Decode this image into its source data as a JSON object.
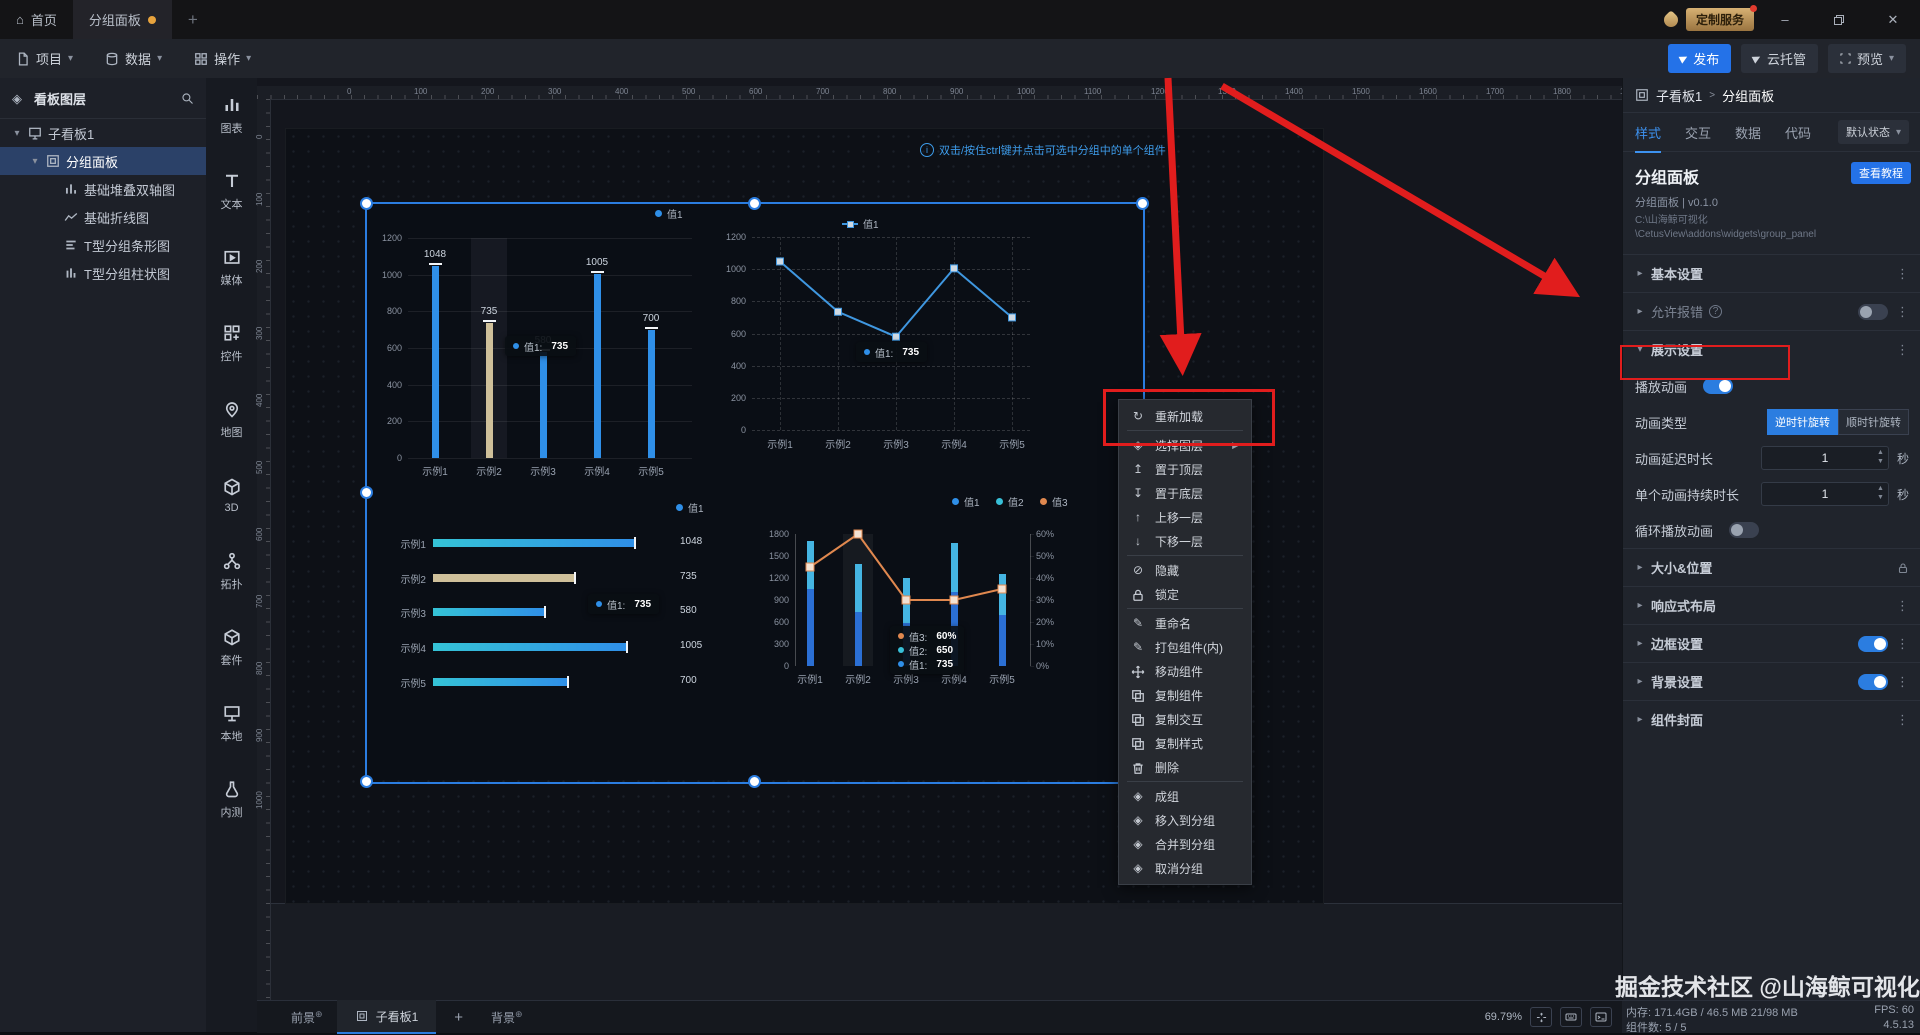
{
  "window": {
    "home_tab": "首页",
    "doc_tab": "分组面板",
    "new_tab": "+",
    "service_badge": "定制服务",
    "minimize": "–",
    "close": "✕"
  },
  "menubar": {
    "items": [
      {
        "label": "项目",
        "icon": "doc"
      },
      {
        "label": "数据",
        "icon": "db"
      },
      {
        "label": "操作",
        "icon": "grid"
      }
    ],
    "publish": "发布",
    "cloud": "云托管",
    "preview": "预览"
  },
  "layers_panel": {
    "title": "看板图层",
    "tree": [
      {
        "label": "子看板1",
        "indent": 0,
        "icon": "monitor",
        "expander": true,
        "selected": false
      },
      {
        "label": "分组面板",
        "indent": 1,
        "icon": "panel",
        "expander": true,
        "selected": true
      },
      {
        "label": "基础堆叠双轴图",
        "indent": 2,
        "icon": "bars-mini",
        "selected": false
      },
      {
        "label": "基础折线图",
        "indent": 2,
        "icon": "line-mini",
        "selected": false
      },
      {
        "label": "T型分组条形图",
        "indent": 2,
        "icon": "hbars-mini",
        "selected": false
      },
      {
        "label": "T型分组柱状图",
        "indent": 2,
        "icon": "vbars-mini",
        "selected": false
      }
    ]
  },
  "widget_toolbar": [
    {
      "label": "图表",
      "icon": "chart"
    },
    {
      "label": "文本",
      "icon": "text"
    },
    {
      "label": "媒体",
      "icon": "media"
    },
    {
      "label": "控件",
      "icon": "widget"
    },
    {
      "label": "地图",
      "icon": "map"
    },
    {
      "label": "3D",
      "icon": "cube"
    },
    {
      "label": "拓扑",
      "icon": "topo"
    },
    {
      "label": "套件",
      "icon": "kit"
    },
    {
      "label": "本地",
      "icon": "local"
    },
    {
      "label": "内测",
      "icon": "beta"
    }
  ],
  "canvas": {
    "hint": "双击/按住ctrl键并点击可选中分组中的单个组件",
    "h_ruler": [
      0,
      100,
      200,
      300,
      400,
      500,
      600,
      700,
      800,
      900,
      1000,
      1100,
      1200,
      1300,
      1400,
      1500,
      1600,
      1700,
      1800,
      1900
    ],
    "v_ruler": [
      0,
      100,
      200,
      300,
      400,
      500,
      600,
      700,
      800,
      900,
      1000
    ]
  },
  "chart_data": [
    {
      "name": "T型分组柱状图",
      "type": "bar",
      "categories": [
        "示例1",
        "示例2",
        "示例3",
        "示例4",
        "示例5"
      ],
      "values": [
        1048,
        735,
        580,
        1005,
        700
      ],
      "ylim": [
        0,
        1200
      ],
      "yticks": [
        1200,
        1000,
        800,
        600,
        400,
        200,
        0
      ],
      "legend": [
        "值1"
      ],
      "highlight_index": 1,
      "tooltip": [
        {
          "series": "值1",
          "value": "735"
        }
      ]
    },
    {
      "name": "基础折线图",
      "type": "line",
      "categories": [
        "示例1",
        "示例2",
        "示例3",
        "示例4",
        "示例5"
      ],
      "values": [
        1048,
        735,
        580,
        1005,
        700
      ],
      "ylim": [
        0,
        1200
      ],
      "yticks": [
        1200,
        1000,
        800,
        600,
        400,
        200,
        0
      ],
      "legend": [
        "值1"
      ],
      "tooltip": [
        {
          "series": "值1",
          "value": "735"
        }
      ]
    },
    {
      "name": "T型分组条形图",
      "type": "hbar",
      "categories": [
        "示例1",
        "示例2",
        "示例3",
        "示例4",
        "示例5"
      ],
      "values": [
        1048,
        735,
        580,
        1005,
        700
      ],
      "xlim": [
        0,
        1048
      ],
      "legend": [
        "值1"
      ],
      "highlight_index": 1,
      "tooltip": [
        {
          "series": "值1",
          "value": "735"
        }
      ]
    },
    {
      "name": "基础堆叠双轴图",
      "type": "combo",
      "categories": [
        "示例1",
        "示例2",
        "示例3",
        "示例4",
        "示例5"
      ],
      "series": [
        {
          "name": "值1",
          "type": "bar",
          "values": [
            1048,
            735,
            580,
            1005,
            700
          ]
        },
        {
          "name": "值2",
          "type": "bar",
          "values": [
            650,
            650,
            620,
            675,
            550
          ]
        },
        {
          "name": "值3",
          "type": "line",
          "values_pct": [
            45,
            60,
            30,
            30,
            35
          ]
        }
      ],
      "ylim_left": [
        0,
        1800
      ],
      "yticks_left": [
        1800,
        1500,
        1200,
        900,
        600,
        300,
        0
      ],
      "yticks_right": [
        "60%",
        "50%",
        "40%",
        "30%",
        "20%",
        "10%",
        "0%"
      ],
      "ylim_right_pct": [
        0,
        60
      ],
      "legend": [
        "值1",
        "值2",
        "值3"
      ],
      "tooltip": [
        {
          "series": "值3",
          "value": "60%"
        },
        {
          "series": "值2",
          "value": "650"
        },
        {
          "series": "值1",
          "value": "735"
        }
      ]
    }
  ],
  "context_menu": {
    "groups": [
      [
        {
          "label": "重新加载",
          "icon": "refresh"
        }
      ],
      [
        {
          "label": "选择图层",
          "icon": "layers",
          "submenu": true
        },
        {
          "label": "置于顶层",
          "icon": "to-top"
        },
        {
          "label": "置于底层",
          "icon": "to-bottom"
        },
        {
          "label": "上移一层",
          "icon": "up"
        },
        {
          "label": "下移一层",
          "icon": "down"
        }
      ],
      [
        {
          "label": "隐藏",
          "icon": "hide"
        },
        {
          "label": "锁定",
          "icon": "lock"
        }
      ],
      [
        {
          "label": "重命名",
          "icon": "rename"
        },
        {
          "label": "打包组件(内)",
          "icon": "rename"
        },
        {
          "label": "移动组件",
          "icon": "move"
        },
        {
          "label": "复制组件",
          "icon": "copy"
        },
        {
          "label": "复制交互",
          "icon": "copy"
        },
        {
          "label": "复制样式",
          "icon": "copy"
        },
        {
          "label": "删除",
          "icon": "trash"
        }
      ],
      [
        {
          "label": "成组",
          "icon": "layers"
        },
        {
          "label": "移入到分组",
          "icon": "layers"
        },
        {
          "label": "合并到分组",
          "icon": "layers"
        },
        {
          "label": "取消分组",
          "icon": "layers"
        }
      ]
    ]
  },
  "inspector": {
    "breadcrumb": {
      "root": "子看板1",
      "sep": ">",
      "current": "分组面板"
    },
    "tabs": [
      "样式",
      "交互",
      "数据",
      "代码"
    ],
    "active_tab": "样式",
    "state_selector": "默认状态",
    "widget_title": "分组面板",
    "tutorial_button": "查看教程",
    "subtitle": "分组面板 | v0.1.0",
    "path_line1": "C:\\山海鲸可视化",
    "path_line2": "\\CetusView\\addons\\widgets\\group_panel",
    "rows": [
      {
        "type": "header",
        "label": "基本设置",
        "expanded": false,
        "trailing": [
          "kebab"
        ]
      },
      {
        "type": "header",
        "label": "允许报错",
        "dim": true,
        "info": true,
        "trailing": [
          "toggle-off",
          "kebab"
        ]
      },
      {
        "type": "header",
        "label": "展示设置",
        "expanded": true,
        "trailing": [
          "kebab"
        ]
      },
      {
        "type": "row-toggle",
        "label": "播放动画",
        "on": true,
        "boxed": true
      },
      {
        "type": "row-segment",
        "label": "动画类型",
        "options": [
          "逆时针旋转",
          "顺时针旋转"
        ],
        "active": 0
      },
      {
        "type": "row-input",
        "label": "动画延迟时长",
        "value": "1",
        "unit": "秒"
      },
      {
        "type": "row-input",
        "label": "单个动画持续时长",
        "value": "1",
        "unit": "秒"
      },
      {
        "type": "row-toggle",
        "label": "循环播放动画",
        "on": false
      },
      {
        "type": "header",
        "label": "大小&位置",
        "trailing": [
          "lock"
        ]
      },
      {
        "type": "header",
        "label": "响应式布局",
        "trailing": [
          "kebab"
        ]
      },
      {
        "type": "header",
        "label": "边框设置",
        "trailing": [
          "toggle-on",
          "kebab"
        ]
      },
      {
        "type": "header",
        "label": "背景设置",
        "trailing": [
          "toggle-on",
          "kebab"
        ]
      },
      {
        "type": "header",
        "label": "组件封面",
        "trailing": [
          "kebab"
        ]
      }
    ]
  },
  "bottom_bar": {
    "foreground": "前景",
    "dashboard_tab": "子看板1",
    "add_tab": "+",
    "background": "背景",
    "zoom": "69.79%",
    "memory": "内存: 171.4GB / 46.5 MB 21/98 MB",
    "fps": "FPS: 60",
    "component_count": "组件数: 5 / 5",
    "version": "4.5.13"
  },
  "watermark": "掘金技术社区 @山海鲸可视化",
  "colors": {
    "accent": "#2b7de0",
    "bar_blue": "#2f8fe8",
    "bar_tan": "#cfc09a",
    "teal": "#38c0d8",
    "orange": "#e0884f",
    "stack_bottom": "#2b6fd4",
    "stack_top": "#45b5e2",
    "red": "#e11d1d"
  }
}
